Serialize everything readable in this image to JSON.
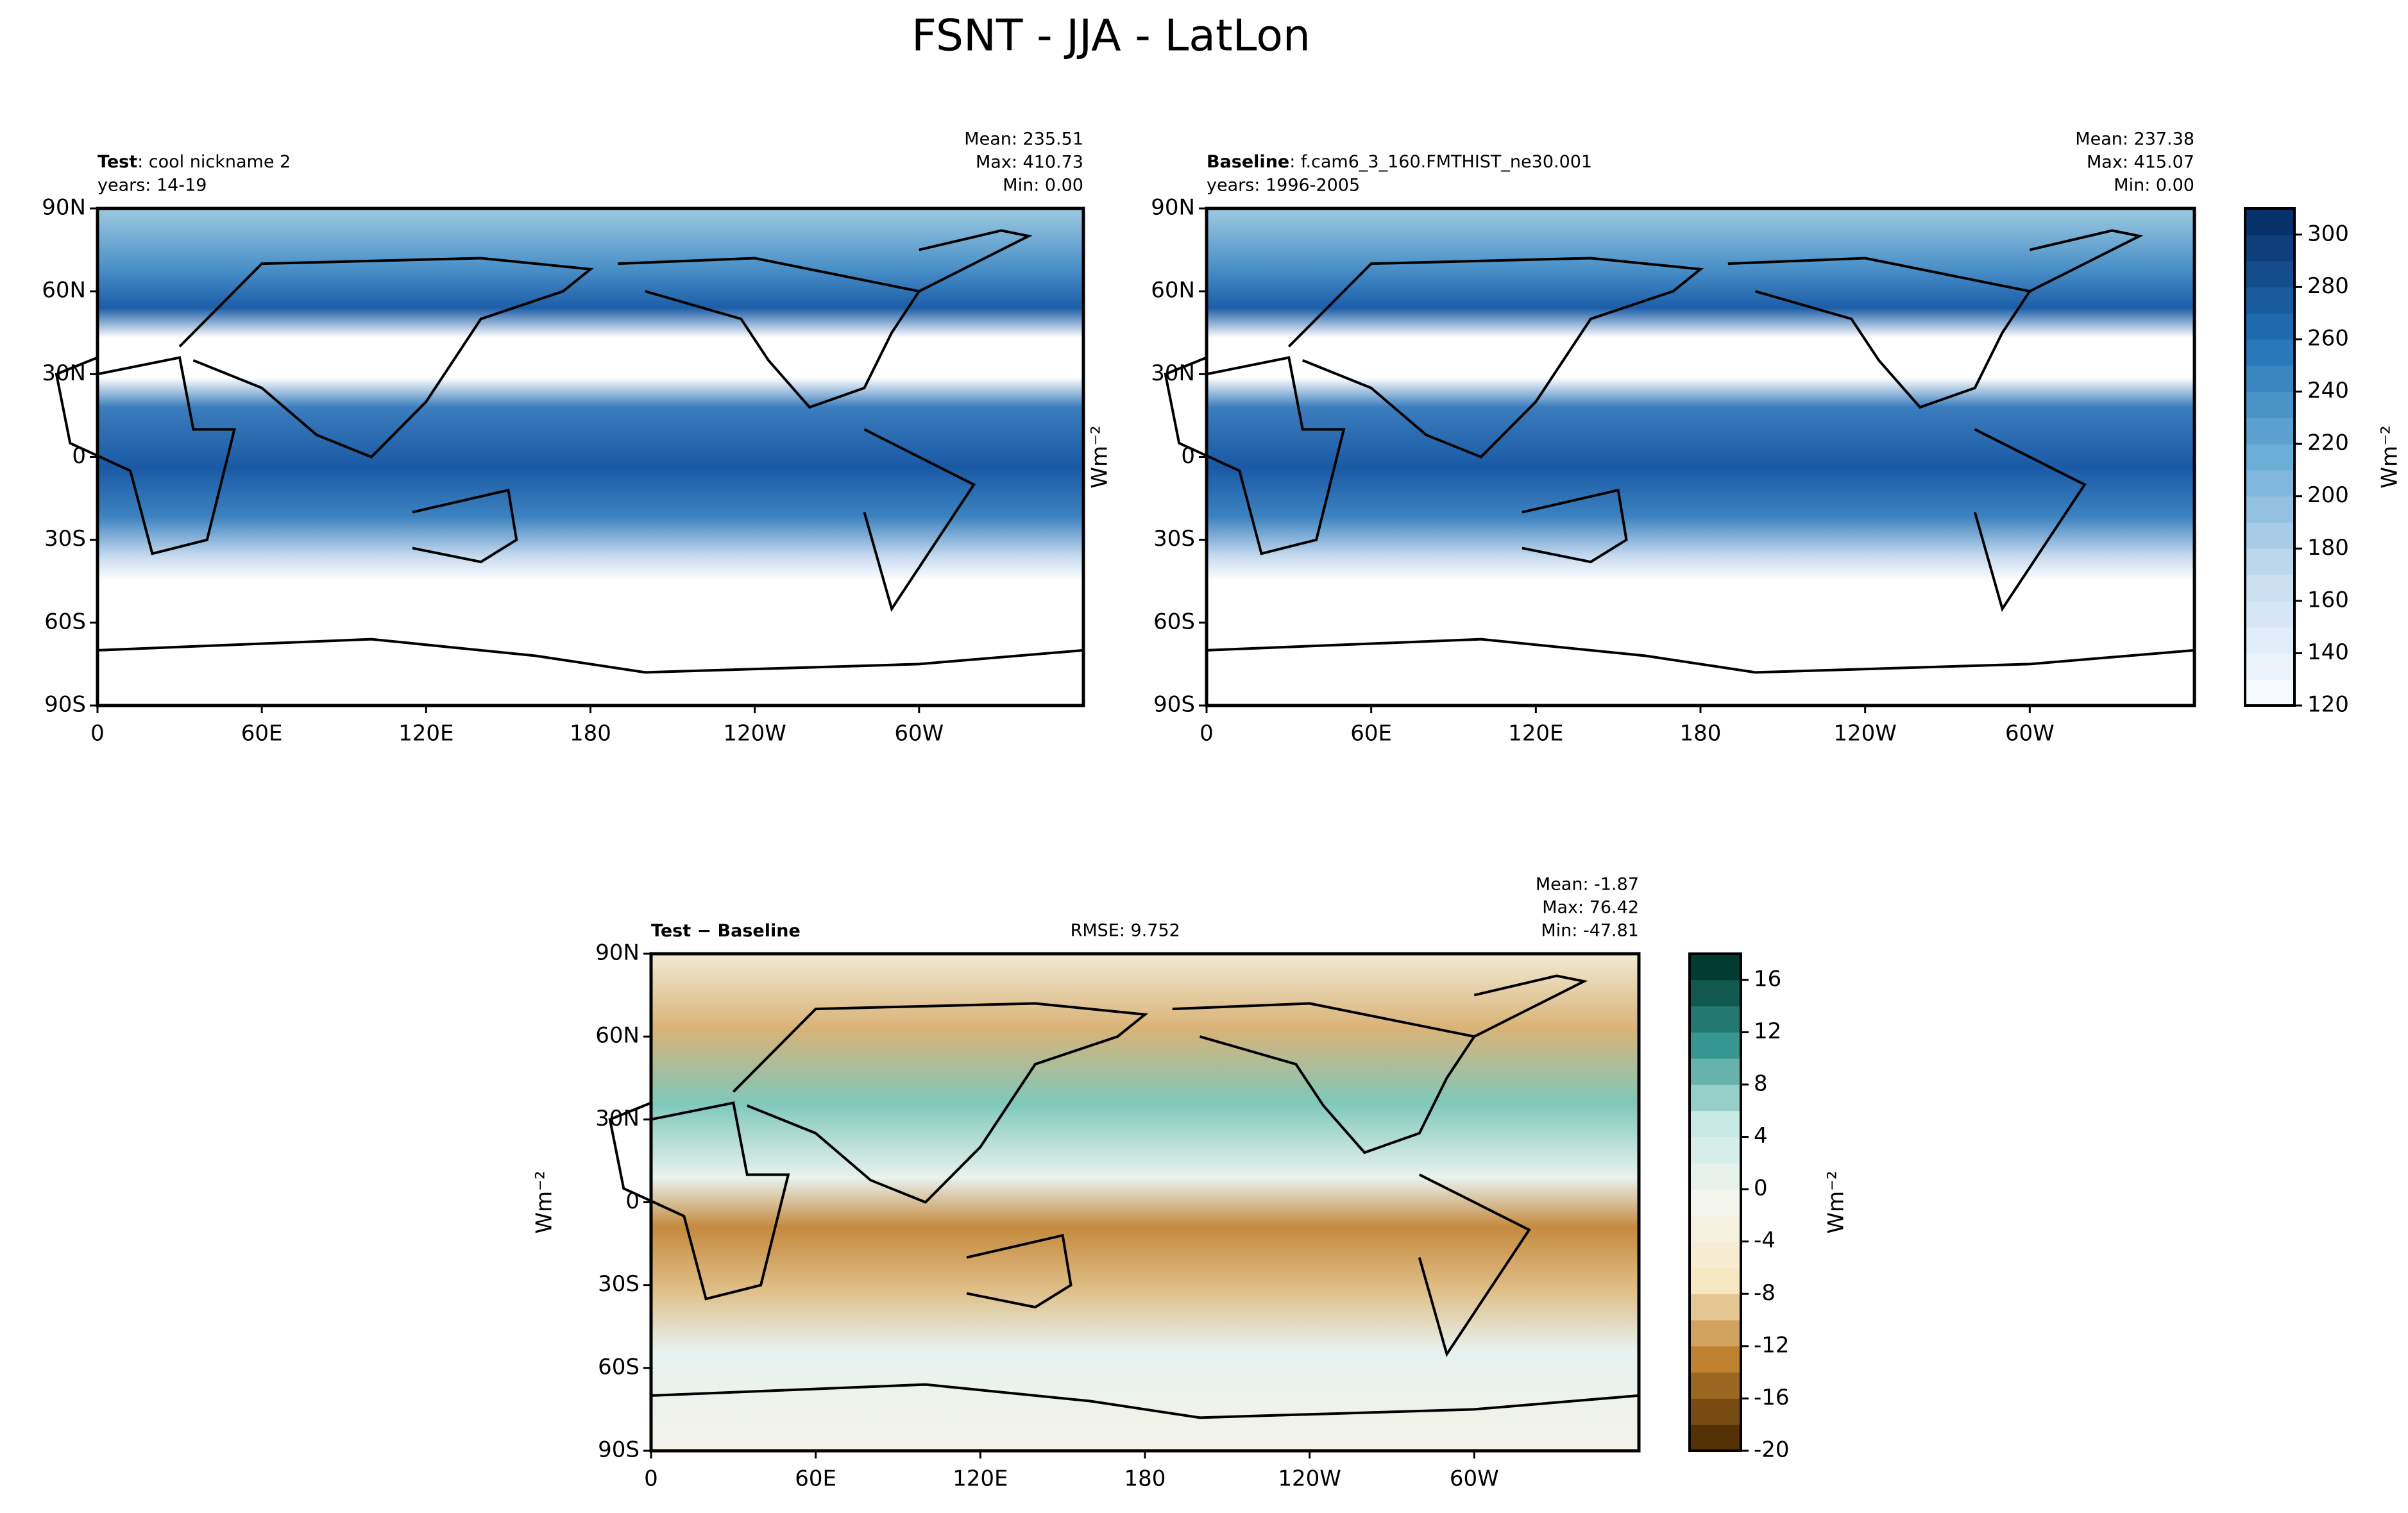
{
  "title": "FSNT - JJA - LatLon",
  "chart_data": [
    {
      "type": "map",
      "label_bold": "Test",
      "label": ": cool nickname 2",
      "subtitle": "years: 14-19",
      "stats": [
        "Mean: 235.51",
        "Max: 410.73",
        "Min:  0.00"
      ],
      "xlim": [
        0,
        360
      ],
      "ylim": [
        -90,
        90
      ],
      "xticks": [
        0,
        {
          "value": 60,
          "label": "60E"
        },
        {
          "value": 120,
          "label": "120E"
        },
        180,
        {
          "value": 240,
          "label": "120W"
        },
        {
          "value": 300,
          "label": "60W"
        }
      ],
      "yticks": [
        {
          "value": -90,
          "label": "90S"
        },
        {
          "value": -60,
          "label": "60S"
        },
        {
          "value": -30,
          "label": "30S"
        },
        0,
        {
          "value": 30,
          "label": "30N"
        },
        {
          "value": 60,
          "label": "60N"
        },
        {
          "value": 90,
          "label": "90N"
        }
      ]
    },
    {
      "type": "map",
      "label_bold": "Baseline",
      "label": ": f.cam6_3_160.FMTHIST_ne30.001",
      "subtitle": "years: 1996-2005",
      "stats": [
        "Mean: 237.38",
        "Max: 415.07",
        "Min:  0.00"
      ],
      "ylabel": "Wm⁻²",
      "xlim": [
        0,
        360
      ],
      "ylim": [
        -90,
        90
      ],
      "xticks": [
        0,
        {
          "value": 60,
          "label": "60E"
        },
        {
          "value": 120,
          "label": "120E"
        },
        180,
        {
          "value": 240,
          "label": "120W"
        },
        {
          "value": 300,
          "label": "60W"
        }
      ],
      "yticks": [
        {
          "value": -90,
          "label": "90S"
        },
        {
          "value": -60,
          "label": "60S"
        },
        {
          "value": -30,
          "label": "30S"
        },
        0,
        {
          "value": 30,
          "label": "30N"
        },
        {
          "value": 60,
          "label": "60N"
        },
        {
          "value": 90,
          "label": "90N"
        }
      ]
    },
    {
      "type": "colorbar",
      "ylabel": "Wm⁻²",
      "levels": [
        120,
        130,
        140,
        150,
        160,
        170,
        180,
        190,
        200,
        210,
        220,
        230,
        240,
        250,
        260,
        270,
        280,
        290,
        300,
        310
      ],
      "ylim": [
        120,
        310
      ],
      "yticks": [
        120,
        140,
        160,
        180,
        200,
        220,
        240,
        260,
        280,
        300
      ],
      "cmap": [
        "#f7fbff",
        "#c6dbef",
        "#6baed6",
        "#2171b5",
        "#08306b"
      ]
    },
    {
      "type": "map",
      "label_bold": "Test − Baseline",
      "rmse": "RMSE: 9.752",
      "stats": [
        "Mean: -1.87",
        "Max: 76.42",
        "Min: -47.81"
      ],
      "ylabel": "Wm⁻²",
      "xlim": [
        0,
        360
      ],
      "ylim": [
        -90,
        90
      ],
      "xticks": [
        0,
        {
          "value": 60,
          "label": "60E"
        },
        {
          "value": 120,
          "label": "120E"
        },
        180,
        {
          "value": 240,
          "label": "120W"
        },
        {
          "value": 300,
          "label": "60W"
        }
      ],
      "yticks": [
        {
          "value": -90,
          "label": "90S"
        },
        {
          "value": -60,
          "label": "60S"
        },
        {
          "value": -30,
          "label": "30S"
        },
        0,
        {
          "value": 30,
          "label": "30N"
        },
        {
          "value": 60,
          "label": "60N"
        },
        {
          "value": 90,
          "label": "90N"
        }
      ]
    },
    {
      "type": "colorbar",
      "ylabel": "Wm⁻²",
      "levels": [
        -20,
        -18,
        -16,
        -14,
        -12,
        -10,
        -8,
        -6,
        -4,
        -2,
        0,
        2,
        4,
        6,
        8,
        10,
        12,
        14,
        16,
        18
      ],
      "ylim": [
        -20,
        18
      ],
      "yticks": [
        -20,
        -16,
        -12,
        -8,
        -4,
        0,
        4,
        8,
        12,
        16
      ],
      "cmap": [
        "#543005",
        "#bf812d",
        "#f6e8c3",
        "#f5f5f0",
        "#c7eae5",
        "#35978f",
        "#003c30"
      ]
    }
  ]
}
